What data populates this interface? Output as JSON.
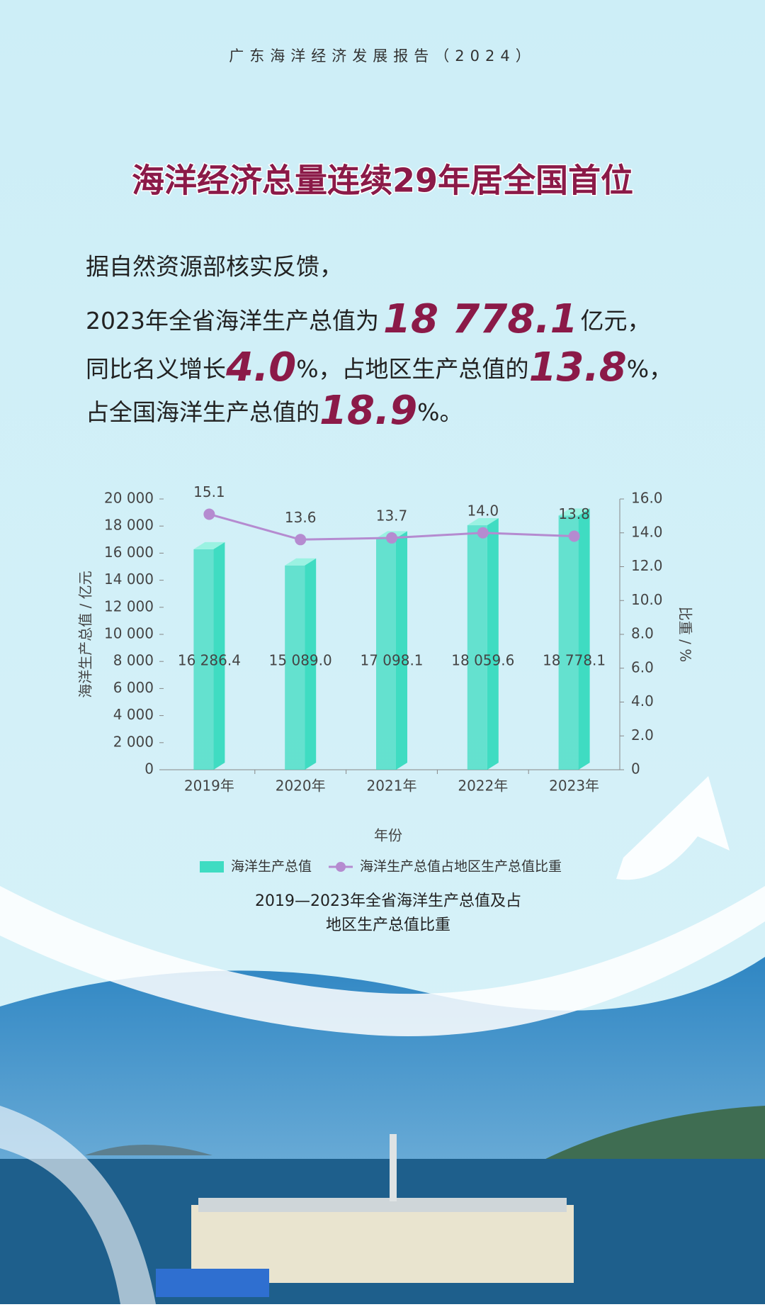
{
  "header": "广东海洋经济发展报告（2024）",
  "headline": "海洋经济总量连续29年居全国首位",
  "paragraph": {
    "line1": "据自然资源部核实反馈，",
    "line2": [
      "2023年全省海洋生产总值为",
      "18 778.1",
      "亿元，"
    ],
    "line3": [
      "同比名义增长",
      "4.0",
      "%，占地区生产总值的",
      "13.8",
      "%，"
    ],
    "line4": [
      "占全国海洋生产总值的",
      "18.9",
      "%。"
    ]
  },
  "chart_data": {
    "type": "bar_line",
    "caption": [
      "2019—2023年全省海洋生产总值及占",
      "地区生产总值比重"
    ],
    "x_label": "年份",
    "y_label": "海洋生产总值 / 亿元",
    "y2_label": "比重 / %",
    "categories": [
      "2019年",
      "2020年",
      "2021年",
      "2022年",
      "2023年"
    ],
    "series": [
      {
        "name": "海洋生产总值",
        "type": "bar",
        "color": "#3fdcc2",
        "values": [
          16286.4,
          15089.0,
          17098.1,
          18059.6,
          18778.1
        ],
        "value_labels": [
          "16 286.4",
          "15 089.0",
          "17 098.1",
          "18 059.6",
          "18 778.1"
        ]
      },
      {
        "name": "海洋生产总值占地区生产总值比重",
        "type": "line",
        "axis": "y2",
        "color": "#b58bd0",
        "values": [
          15.1,
          13.6,
          13.7,
          14.0,
          13.8
        ],
        "value_labels": [
          "15.1",
          "13.6",
          "13.7",
          "14.0",
          "13.8"
        ]
      }
    ],
    "ylim": [
      0,
      20000
    ],
    "yticks": [
      0,
      {
        "value": 2000,
        "label": "2 000"
      },
      {
        "value": 4000,
        "label": "4 000"
      },
      {
        "value": 6000,
        "label": "6 000"
      },
      {
        "value": 8000,
        "label": "8 000"
      },
      {
        "value": 10000,
        "label": "10 000"
      },
      {
        "value": 12000,
        "label": "12 000"
      },
      {
        "value": 14000,
        "label": "14 000"
      },
      {
        "value": 16000,
        "label": "16 000"
      },
      {
        "value": 18000,
        "label": "18 000"
      },
      {
        "value": 20000,
        "label": "20 000"
      }
    ],
    "y2lim": [
      0,
      16
    ],
    "y2ticks": [
      0,
      {
        "value": 2,
        "label": "2.0"
      },
      {
        "value": 4,
        "label": "4.0"
      },
      {
        "value": 6,
        "label": "6.0"
      },
      {
        "value": 8,
        "label": "8.0"
      },
      {
        "value": 10,
        "label": "10.0"
      },
      {
        "value": 12,
        "label": "12.0"
      },
      {
        "value": 14,
        "label": "14.0"
      },
      {
        "value": 16,
        "label": "16.0"
      }
    ],
    "legend": "bottom"
  }
}
